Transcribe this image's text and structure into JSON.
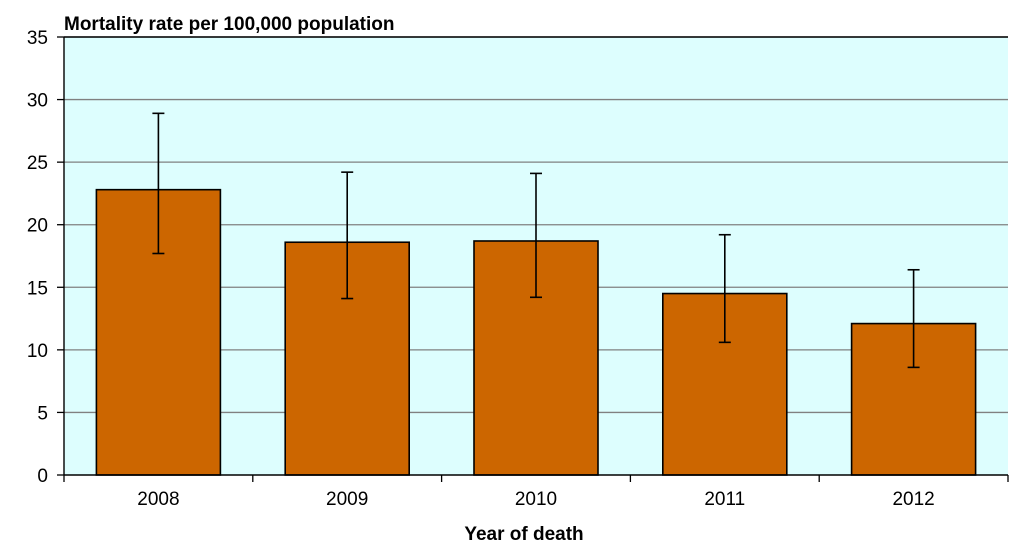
{
  "chart_data": {
    "type": "bar",
    "title": "",
    "ylabel": "Mortality rate per 100,000 population",
    "xlabel": "Year of death",
    "categories": [
      "2008",
      "2009",
      "2010",
      "2011",
      "2012"
    ],
    "series": [
      {
        "values": [
          22.8,
          18.6,
          18.7,
          14.5,
          12.1
        ],
        "error_low": [
          17.7,
          14.1,
          14.2,
          10.6,
          8.6
        ],
        "error_high": [
          28.9,
          24.2,
          24.1,
          19.2,
          16.4
        ]
      }
    ],
    "ylim": [
      0,
      35
    ],
    "yticks": [
      0,
      5,
      10,
      15,
      20,
      25,
      30,
      35
    ],
    "grid": true,
    "legend": "none",
    "colors": {
      "bar": "#CC6600",
      "plot_background": "#DDFEFE",
      "gridline": "#808080"
    }
  }
}
